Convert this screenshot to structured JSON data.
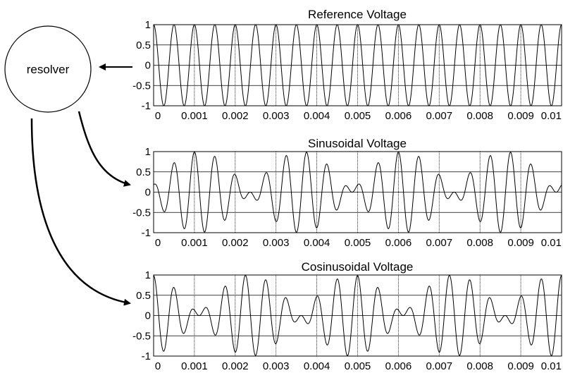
{
  "resolver": {
    "label": "resolver"
  },
  "chart_data": [
    {
      "type": "line",
      "title": "Reference Voltage",
      "xlabel": "",
      "ylabel": "",
      "xlim": [
        0,
        0.01
      ],
      "ylim": [
        -1,
        1
      ],
      "xticks": [
        "0",
        "0.001",
        "0.002",
        "0.003",
        "0.004",
        "0.005",
        "0.006",
        "0.007",
        "0.008",
        "0.009",
        "0.01"
      ],
      "yticks": [
        "1",
        "0.5",
        "0",
        "-0.5",
        "-1"
      ],
      "grid": true,
      "series": [
        {
          "carrier_frequency_hz": 2000,
          "envelope": "constant",
          "amplitude": 1
        }
      ]
    },
    {
      "type": "line",
      "title": "Sinusoidal Voltage",
      "xlabel": "",
      "ylabel": "",
      "xlim": [
        0,
        0.01
      ],
      "ylim": [
        -1,
        1
      ],
      "xticks": [
        "0",
        "0.001",
        "0.002",
        "0.003",
        "0.004",
        "0.005",
        "0.006",
        "0.007",
        "0.008",
        "0.009",
        "0.01"
      ],
      "yticks": [
        "1",
        "0.5",
        "0",
        "-0.5",
        "-1"
      ],
      "grid": true,
      "series": [
        {
          "carrier_frequency_hz": 2000,
          "envelope": "sin",
          "envelope_frequency_hz": 200,
          "amplitude": 1
        }
      ]
    },
    {
      "type": "line",
      "title": "Cosinusoidal Voltage",
      "xlabel": "",
      "ylabel": "",
      "xlim": [
        0,
        0.01
      ],
      "ylim": [
        -1,
        1
      ],
      "xticks": [
        "0",
        "0.001",
        "0.002",
        "0.003",
        "0.004",
        "0.005",
        "0.006",
        "0.007",
        "0.008",
        "0.009",
        "0.01"
      ],
      "yticks": [
        "1",
        "0.5",
        "0",
        "-0.5",
        "-1"
      ],
      "grid": true,
      "series": [
        {
          "carrier_frequency_hz": 2000,
          "envelope": "cos",
          "envelope_frequency_hz": 200,
          "amplitude": 1
        }
      ]
    }
  ]
}
